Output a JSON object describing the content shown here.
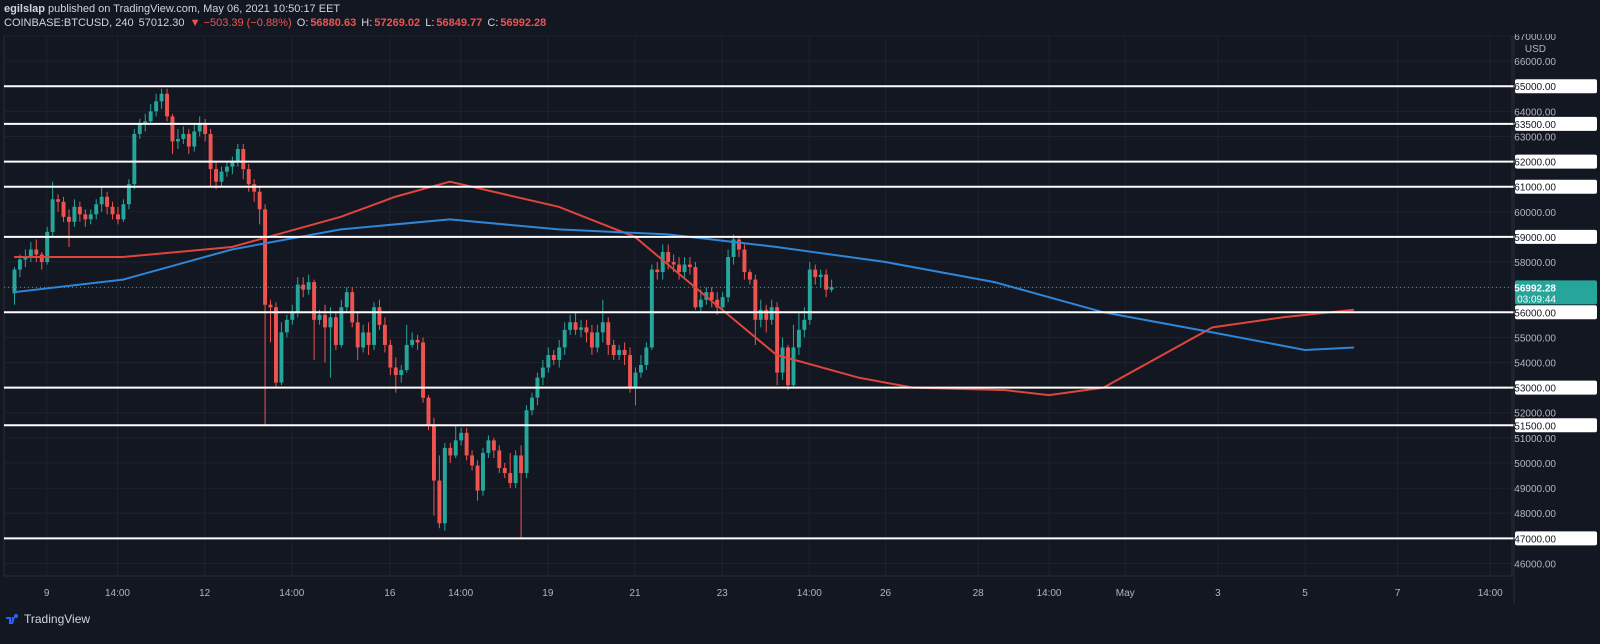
{
  "header": {
    "author": "egilslap",
    "published": "published on TradingView.com, May 06, 2021 10:50:17 EET",
    "symbol": "COINBASE:BTCUSD, 240",
    "last": "57012.30",
    "change": "▼ −503.39 (−0.88%)",
    "open_label": "O:",
    "open": "56880.63",
    "high_label": "H:",
    "high": "57269.02",
    "low_label": "L:",
    "low": "56849.77",
    "close_label": "C:",
    "close": "56992.28"
  },
  "footer": {
    "brand": "TradingView"
  },
  "colors": {
    "background": "#131722",
    "grid": "#1e222d",
    "up": "#26a69a",
    "down": "#ef5350",
    "ma_red": "#e0453c",
    "ma_blue": "#2f86d6",
    "level": "#ffffff",
    "text": "#b2b5be"
  },
  "chart_data": {
    "type": "candlestick",
    "currency": "USD",
    "ylim": [
      45500,
      67000
    ],
    "y_ticks": [
      "67000.00",
      "66000.00",
      "65000.00",
      "64000.00",
      "63500.00",
      "63000.00",
      "62000.00",
      "61000.00",
      "60000.00",
      "59000.00",
      "58000.00",
      "56992.28",
      "56000.00",
      "55000.00",
      "54000.00",
      "53000.00",
      "52000.00",
      "51500.00",
      "51000.00",
      "50000.00",
      "49000.00",
      "48000.00",
      "47000.00",
      "46000.00"
    ],
    "x_ticks": [
      "9",
      "14:00",
      "12",
      "14:00",
      "16",
      "14:00",
      "19",
      "21",
      "23",
      "14:00",
      "26",
      "28",
      "14:00",
      "May",
      "3",
      "5",
      "7",
      "14:00"
    ],
    "x_tick_index": [
      6,
      19,
      35,
      51,
      69,
      82,
      98,
      114,
      130,
      146,
      160,
      177,
      190,
      204,
      221,
      237,
      254,
      271
    ],
    "current_price": "56992.28",
    "countdown": "03:09:44",
    "horizontal_levels": [
      65000,
      63500,
      62000,
      61000,
      59000,
      56000,
      53000,
      51500,
      47000
    ],
    "moving_averages": [
      {
        "color": "red",
        "points": [
          [
            0,
            58200
          ],
          [
            20,
            58200
          ],
          [
            40,
            58600
          ],
          [
            60,
            59800
          ],
          [
            70,
            60600
          ],
          [
            80,
            61200
          ],
          [
            100,
            60200
          ],
          [
            114,
            59000
          ],
          [
            125,
            57000
          ],
          [
            140,
            54300
          ],
          [
            155,
            53400
          ],
          [
            165,
            53000
          ],
          [
            182,
            52900
          ],
          [
            190,
            52700
          ],
          [
            200,
            53000
          ],
          [
            210,
            54200
          ],
          [
            220,
            55400
          ],
          [
            233,
            55800
          ],
          [
            246,
            56100
          ]
        ]
      },
      {
        "color": "blue",
        "points": [
          [
            0,
            56800
          ],
          [
            20,
            57300
          ],
          [
            40,
            58500
          ],
          [
            60,
            59300
          ],
          [
            80,
            59700
          ],
          [
            100,
            59300
          ],
          [
            120,
            59100
          ],
          [
            140,
            58600
          ],
          [
            160,
            58000
          ],
          [
            180,
            57200
          ],
          [
            200,
            56000
          ],
          [
            220,
            55200
          ],
          [
            237,
            54500
          ],
          [
            246,
            54600
          ]
        ]
      }
    ],
    "candles": [
      [
        56750,
        57700,
        56300,
        57800
      ],
      [
        57700,
        58100,
        57400,
        58300
      ],
      [
        58100,
        58200,
        57800,
        58500
      ],
      [
        58200,
        58500,
        58000,
        58800
      ],
      [
        58500,
        58300,
        58000,
        58900
      ],
      [
        58300,
        58000,
        57700,
        58400
      ],
      [
        58000,
        59200,
        57900,
        59400
      ],
      [
        59200,
        60500,
        59000,
        61200
      ],
      [
        60500,
        60400,
        60000,
        60700
      ],
      [
        60400,
        59800,
        59600,
        60600
      ],
      [
        59800,
        59600,
        58600,
        60100
      ],
      [
        59600,
        60200,
        59400,
        60500
      ],
      [
        60200,
        59900,
        59600,
        60400
      ],
      [
        59900,
        59700,
        59400,
        60100
      ],
      [
        59700,
        59900,
        59500,
        60100
      ],
      [
        59900,
        60300,
        59700,
        60500
      ],
      [
        60300,
        60600,
        60000,
        61000
      ],
      [
        60600,
        60200,
        59900,
        60800
      ],
      [
        60200,
        59900,
        59700,
        60400
      ],
      [
        59900,
        59700,
        59500,
        60200
      ],
      [
        59700,
        60300,
        59600,
        60500
      ],
      [
        60300,
        61100,
        60100,
        61300
      ],
      [
        61100,
        63100,
        60900,
        63300
      ],
      [
        63100,
        63500,
        62900,
        63700
      ],
      [
        63500,
        63600,
        63200,
        63900
      ],
      [
        63600,
        64000,
        63500,
        64300
      ],
      [
        64000,
        64400,
        63800,
        64700
      ],
      [
        64400,
        64700,
        64100,
        64900
      ],
      [
        64700,
        63800,
        63600,
        64900
      ],
      [
        63800,
        62800,
        62300,
        63900
      ],
      [
        62800,
        62900,
        62500,
        63300
      ],
      [
        62900,
        63100,
        62700,
        63400
      ],
      [
        63100,
        62600,
        62300,
        63300
      ],
      [
        62600,
        63200,
        62400,
        63500
      ],
      [
        63200,
        63500,
        63000,
        63800
      ],
      [
        63500,
        63100,
        62800,
        63700
      ],
      [
        63100,
        61700,
        61000,
        63300
      ],
      [
        61700,
        61200,
        60900,
        62000
      ],
      [
        61200,
        61600,
        61000,
        61800
      ],
      [
        61600,
        61800,
        61400,
        62000
      ],
      [
        61800,
        62000,
        61500,
        62200
      ],
      [
        62000,
        62500,
        61800,
        62700
      ],
      [
        62500,
        61700,
        61300,
        62700
      ],
      [
        61700,
        61100,
        60800,
        61900
      ],
      [
        61100,
        60800,
        60400,
        61300
      ],
      [
        60800,
        60100,
        59500,
        61000
      ],
      [
        60100,
        56300,
        51500,
        60300
      ],
      [
        56300,
        56200,
        54800,
        56500
      ],
      [
        56200,
        53200,
        53000,
        56400
      ],
      [
        53200,
        55200,
        53100,
        55600
      ],
      [
        55200,
        55700,
        55000,
        55900
      ],
      [
        55700,
        56000,
        55500,
        56300
      ],
      [
        56000,
        57100,
        55800,
        57400
      ],
      [
        57100,
        56900,
        56600,
        57400
      ],
      [
        56900,
        57200,
        56700,
        57500
      ],
      [
        57200,
        55700,
        54100,
        57300
      ],
      [
        55700,
        55900,
        55500,
        56100
      ],
      [
        55900,
        55400,
        54000,
        56300
      ],
      [
        55400,
        55800,
        53400,
        56200
      ],
      [
        55800,
        54700,
        54500,
        56000
      ],
      [
        54700,
        56200,
        54600,
        56500
      ],
      [
        56200,
        56800,
        56000,
        57000
      ],
      [
        56800,
        55600,
        55400,
        57000
      ],
      [
        55600,
        54600,
        54100,
        56000
      ],
      [
        54600,
        55200,
        54400,
        55500
      ],
      [
        55200,
        54700,
        54300,
        55600
      ],
      [
        54700,
        56200,
        54500,
        56400
      ],
      [
        56200,
        55500,
        55300,
        56500
      ],
      [
        55500,
        54700,
        54400,
        55800
      ],
      [
        54700,
        53800,
        53500,
        54900
      ],
      [
        53800,
        53500,
        52800,
        54200
      ],
      [
        53500,
        53700,
        53200,
        53900
      ],
      [
        53700,
        54700,
        53600,
        55500
      ],
      [
        54700,
        54900,
        54600,
        55200
      ],
      [
        54900,
        54800,
        54500,
        55100
      ],
      [
        54800,
        52600,
        52400,
        55000
      ],
      [
        52600,
        51500,
        51300,
        52700
      ],
      [
        51500,
        49300,
        47900,
        51800
      ],
      [
        49300,
        47600,
        47400,
        50300
      ],
      [
        47600,
        50600,
        47300,
        50800
      ],
      [
        50600,
        50300,
        50000,
        50800
      ],
      [
        50300,
        50900,
        50200,
        51500
      ],
      [
        50900,
        51200,
        50700,
        51400
      ],
      [
        51200,
        50300,
        50100,
        51400
      ],
      [
        50300,
        49900,
        49700,
        50500
      ],
      [
        49900,
        48900,
        48500,
        50100
      ],
      [
        48900,
        50400,
        48700,
        50600
      ],
      [
        50400,
        50900,
        50200,
        51100
      ],
      [
        50900,
        50500,
        50200,
        51000
      ],
      [
        50500,
        49800,
        49600,
        50700
      ],
      [
        49800,
        49600,
        49400,
        50000
      ],
      [
        49600,
        49200,
        49000,
        50400
      ],
      [
        49200,
        50300,
        49000,
        50500
      ],
      [
        50300,
        49600,
        47000,
        50700
      ],
      [
        49600,
        52100,
        49400,
        52300
      ],
      [
        52100,
        52600,
        51900,
        52800
      ],
      [
        52600,
        53400,
        52300,
        53600
      ],
      [
        53400,
        53800,
        53100,
        54100
      ],
      [
        53800,
        54300,
        53600,
        54600
      ],
      [
        54300,
        54100,
        53900,
        54500
      ],
      [
        54100,
        54600,
        53800,
        54900
      ],
      [
        54600,
        55300,
        54300,
        55600
      ],
      [
        55300,
        55600,
        55100,
        55900
      ],
      [
        55600,
        55300,
        55100,
        56000
      ],
      [
        55300,
        55400,
        55000,
        55700
      ],
      [
        55400,
        55200,
        54800,
        55700
      ],
      [
        55200,
        54600,
        54300,
        55500
      ],
      [
        54600,
        55200,
        54400,
        55500
      ],
      [
        55200,
        55600,
        54800,
        56500
      ],
      [
        55600,
        54700,
        54300,
        55800
      ],
      [
        54700,
        54300,
        54100,
        54900
      ],
      [
        54300,
        54500,
        54100,
        54700
      ],
      [
        54500,
        54300,
        53900,
        54800
      ],
      [
        54300,
        53000,
        52800,
        54600
      ],
      [
        53000,
        53600,
        52300,
        53800
      ],
      [
        53600,
        53900,
        53400,
        54300
      ],
      [
        53900,
        54600,
        53700,
        54800
      ],
      [
        54600,
        57700,
        54500,
        57900
      ],
      [
        57700,
        57600,
        57300,
        58000
      ],
      [
        57600,
        58400,
        57300,
        58700
      ],
      [
        58400,
        58000,
        57700,
        58700
      ],
      [
        58000,
        57900,
        57600,
        58300
      ],
      [
        57900,
        57600,
        57300,
        58200
      ],
      [
        57600,
        57900,
        57400,
        58200
      ],
      [
        57900,
        57800,
        57500,
        58200
      ],
      [
        57800,
        56200,
        56100,
        58000
      ],
      [
        56200,
        56500,
        56000,
        56900
      ],
      [
        56500,
        56800,
        56300,
        57000
      ],
      [
        56800,
        56500,
        56200,
        57000
      ],
      [
        56500,
        56200,
        55900,
        56800
      ],
      [
        56200,
        56600,
        56000,
        56800
      ],
      [
        56600,
        58200,
        56400,
        58500
      ],
      [
        58200,
        58900,
        57900,
        59100
      ],
      [
        58900,
        58500,
        58200,
        59000
      ],
      [
        58500,
        57600,
        57300,
        58700
      ],
      [
        57600,
        57300,
        57100,
        57700
      ],
      [
        57300,
        55700,
        54700,
        57500
      ],
      [
        55700,
        56100,
        55400,
        56500
      ],
      [
        56100,
        55700,
        55200,
        56300
      ],
      [
        55700,
        56200,
        55500,
        56500
      ],
      [
        56200,
        53600,
        53100,
        56400
      ],
      [
        53600,
        54600,
        53300,
        55000
      ],
      [
        54600,
        53100,
        52900,
        54700
      ],
      [
        53100,
        54600,
        53000,
        55500
      ],
      [
        54600,
        55300,
        54300,
        56000
      ],
      [
        55300,
        55700,
        55000,
        56200
      ],
      [
        55700,
        57700,
        55500,
        58000
      ],
      [
        57700,
        57400,
        57100,
        57900
      ],
      [
        57400,
        57500,
        57000,
        57700
      ],
      [
        57500,
        56900,
        56600,
        57700
      ],
      [
        56900,
        57000,
        56800,
        57300
      ]
    ]
  }
}
